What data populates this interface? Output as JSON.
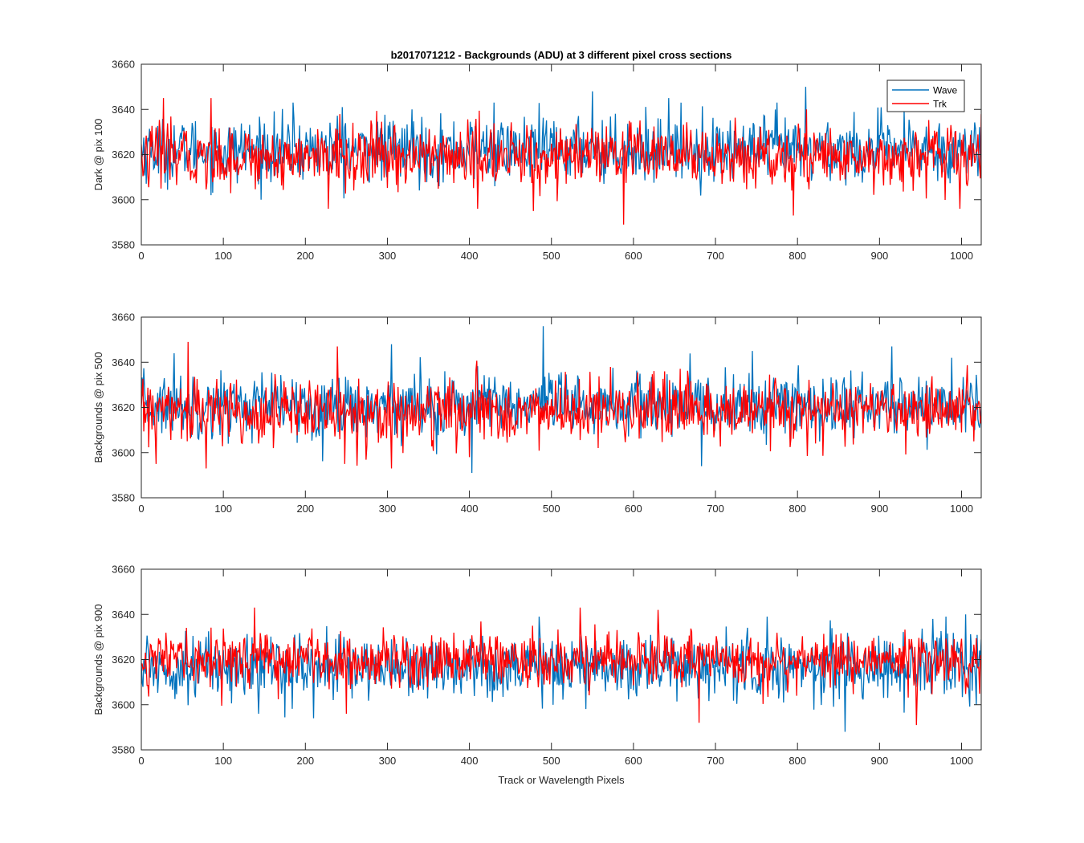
{
  "figure": {
    "title": "b2017071212 - Backgrounds (ADU) at 3 different pixel cross sections",
    "xlabel": "Track or Wavelength Pixels"
  },
  "legend": {
    "placement": "top-right of first panel",
    "entries": [
      {
        "name": "Wave",
        "color": "#0072BD"
      },
      {
        "name": "Trk",
        "color": "#FF0000"
      }
    ]
  },
  "chart_data": [
    {
      "type": "line",
      "ylabel": "Dark @ pix 100",
      "xlim": [
        0,
        1024
      ],
      "ylim": [
        3580,
        3660
      ],
      "xticks": [
        0,
        100,
        200,
        300,
        400,
        500,
        600,
        700,
        800,
        900,
        1000
      ],
      "yticks": [
        3580,
        3600,
        3620,
        3640,
        3660
      ],
      "grid": false,
      "series": [
        {
          "name": "Wave",
          "color": "#0072BD",
          "mean": 3622,
          "std": 7,
          "min": 3599,
          "max": 3650,
          "spikes": [
            [
              550,
              3648
            ],
            [
              810,
              3650
            ],
            [
              185,
              3643
            ],
            [
              430,
              3643
            ],
            [
              775,
              3643
            ],
            [
              330,
              3640
            ],
            [
              245,
              3641
            ],
            [
              643,
              3645
            ]
          ]
        },
        {
          "name": "Trk",
          "color": "#FF0000",
          "mean": 3619,
          "std": 7,
          "min": 3589,
          "max": 3645,
          "spikes": [
            [
              27,
              3645
            ],
            [
              85,
              3645
            ],
            [
              588,
              3589
            ],
            [
              795,
              3593
            ],
            [
              228,
              3596
            ],
            [
              410,
              3596
            ],
            [
              811,
              3640
            ],
            [
              998,
              3596
            ],
            [
              478,
              3595
            ]
          ]
        }
      ]
    },
    {
      "type": "line",
      "ylabel": "Backgrounds @ pix 500",
      "xlim": [
        0,
        1024
      ],
      "ylim": [
        3580,
        3660
      ],
      "xticks": [
        0,
        100,
        200,
        300,
        400,
        500,
        600,
        700,
        800,
        900,
        1000
      ],
      "yticks": [
        3580,
        3600,
        3620,
        3640,
        3660
      ],
      "grid": false,
      "series": [
        {
          "name": "Wave",
          "color": "#0072BD",
          "mean": 3621,
          "std": 7,
          "min": 3591,
          "max": 3656,
          "spikes": [
            [
              490,
              3656
            ],
            [
              305,
              3648
            ],
            [
              403,
              3591
            ],
            [
              683,
              3594
            ],
            [
              40,
              3644
            ],
            [
              745,
              3645
            ],
            [
              915,
              3647
            ]
          ]
        },
        {
          "name": "Trk",
          "color": "#FF0000",
          "mean": 3618,
          "std": 7,
          "min": 3593,
          "max": 3649,
          "spikes": [
            [
              57,
              3649
            ],
            [
              239,
              3647
            ],
            [
              18,
              3595
            ],
            [
              79,
              3593
            ],
            [
              248,
              3595
            ],
            [
              305,
              3593
            ],
            [
              400,
              3598
            ],
            [
              1015,
              3605
            ]
          ]
        }
      ]
    },
    {
      "type": "line",
      "ylabel": "Backgrounds @ pix 900",
      "xlim": [
        0,
        1024
      ],
      "ylim": [
        3580,
        3660
      ],
      "xticks": [
        0,
        100,
        200,
        300,
        400,
        500,
        600,
        700,
        800,
        900,
        1000
      ],
      "yticks": [
        3580,
        3600,
        3620,
        3640,
        3660
      ],
      "grid": false,
      "series": [
        {
          "name": "Wave",
          "color": "#0072BD",
          "mean": 3617,
          "std": 7,
          "min": 3588,
          "max": 3640,
          "spikes": [
            [
              858,
              3588
            ],
            [
              143,
              3596
            ],
            [
              210,
              3594
            ],
            [
              1005,
              3640
            ],
            [
              1018,
              3600
            ],
            [
              965,
              3638
            ]
          ]
        },
        {
          "name": "Trk",
          "color": "#FF0000",
          "mean": 3620,
          "std": 6,
          "min": 3591,
          "max": 3643,
          "spikes": [
            [
              138,
              3643
            ],
            [
              535,
              3643
            ],
            [
              630,
              3642
            ],
            [
              945,
              3591
            ],
            [
              680,
              3592
            ],
            [
              250,
              3596
            ]
          ]
        }
      ]
    }
  ]
}
